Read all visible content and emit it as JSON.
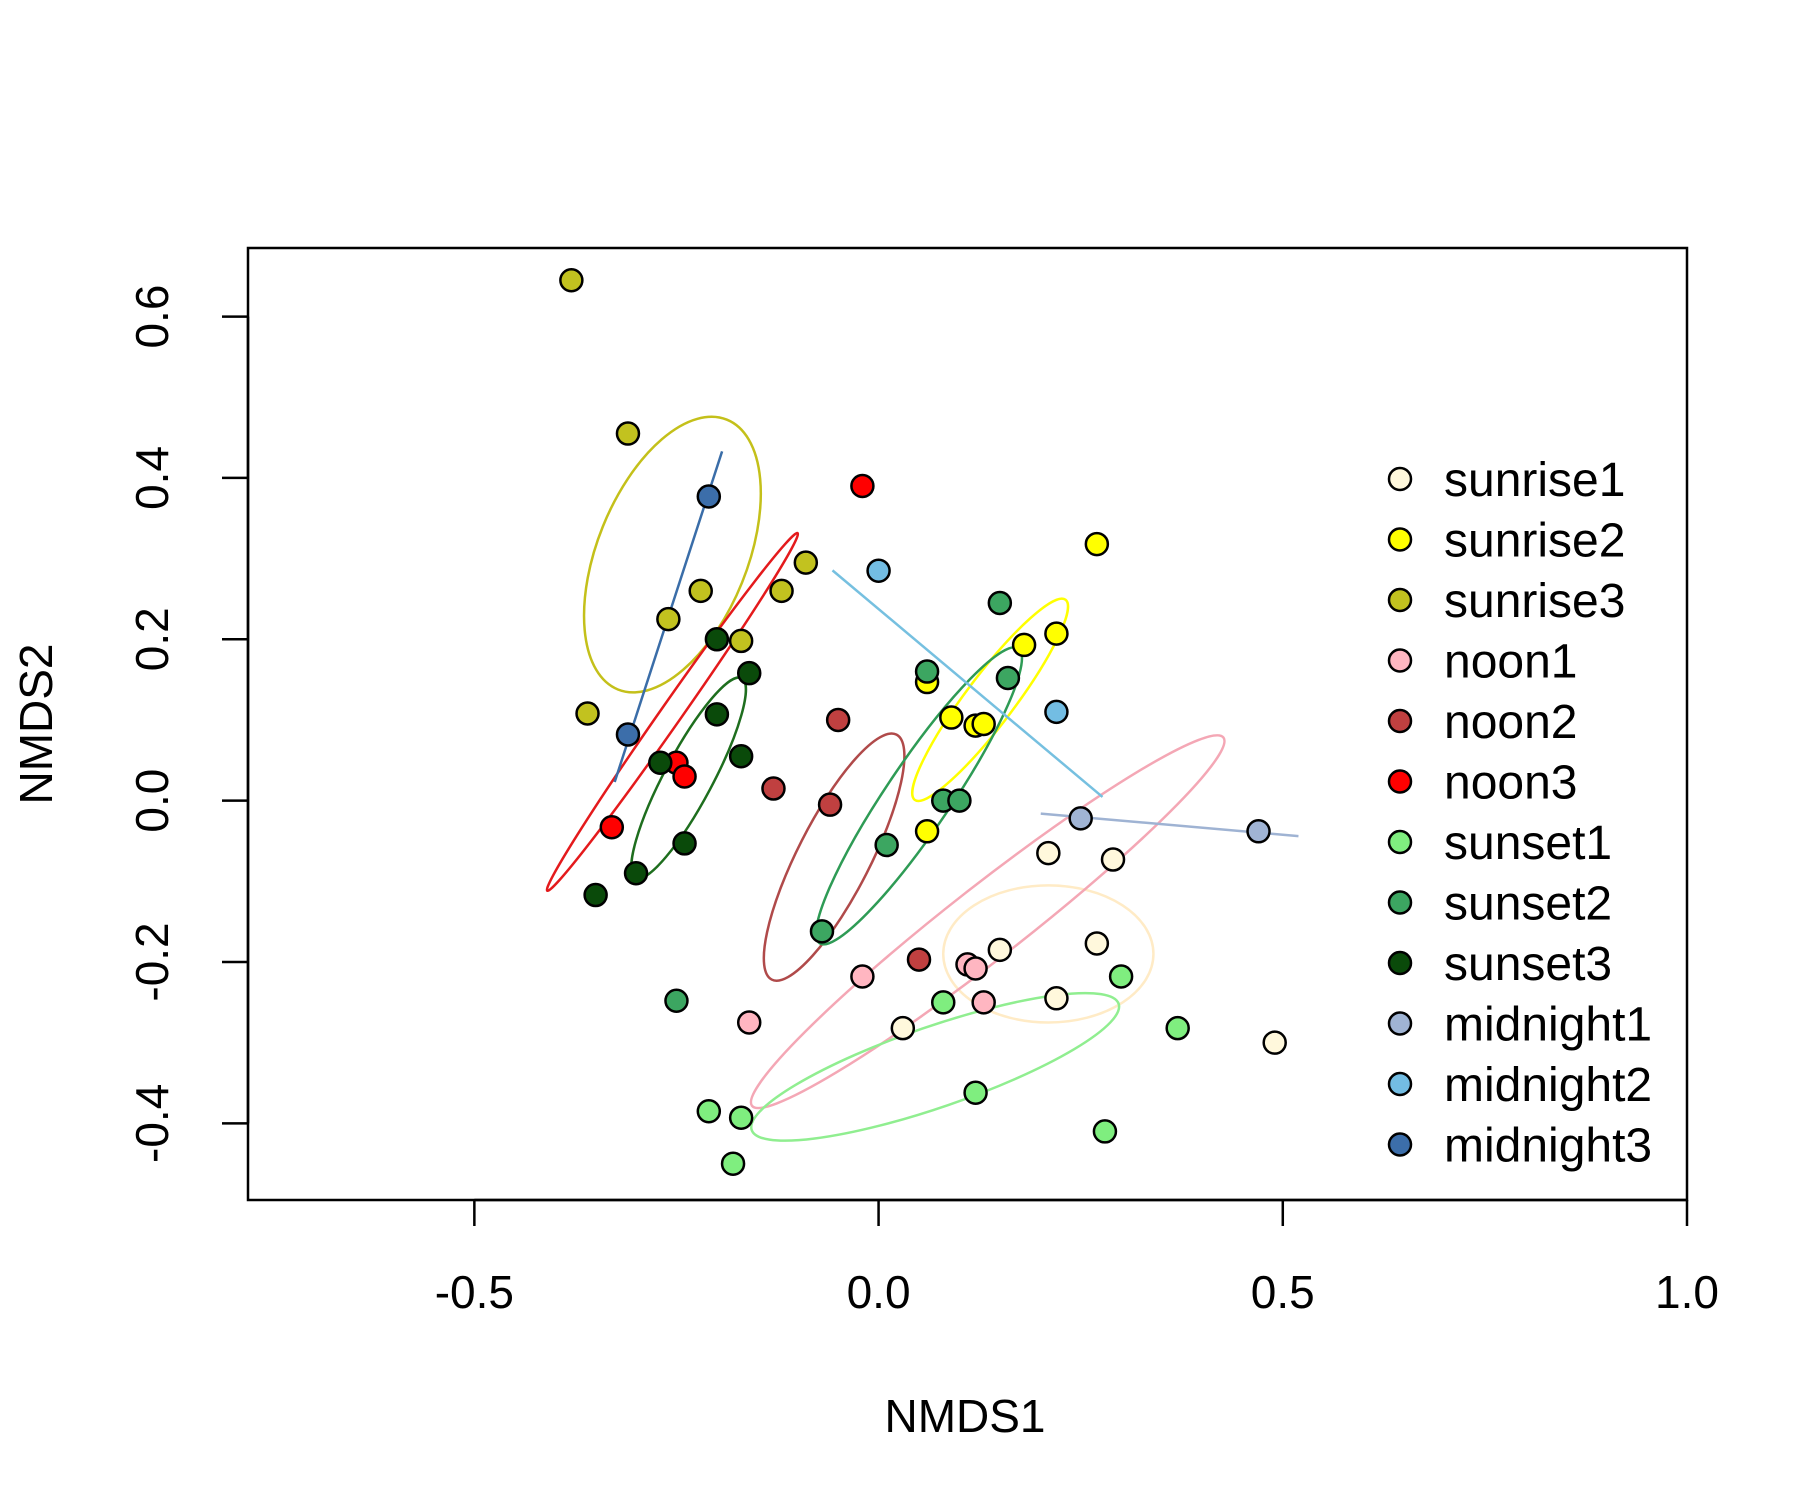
{
  "chart_data": {
    "type": "scatter",
    "title": "",
    "xlabel": "NMDS1",
    "ylabel": "NMDS2",
    "xlim": [
      -0.78,
      1.0
    ],
    "ylim": [
      -0.495,
      0.685
    ],
    "xticks": [
      {
        "value": -0.5,
        "label": "-0.5"
      },
      {
        "value": 0.0,
        "label": "0.0"
      },
      {
        "value": 0.5,
        "label": "0.5"
      },
      {
        "value": 1.0,
        "label": "1.0"
      }
    ],
    "yticks": [
      {
        "value": -0.4,
        "label": "-0.4"
      },
      {
        "value": -0.2,
        "label": "-0.2"
      },
      {
        "value": 0.0,
        "label": "0.0"
      },
      {
        "value": 0.2,
        "label": "0.2"
      },
      {
        "value": 0.4,
        "label": "0.4"
      },
      {
        "value": 0.6,
        "label": "0.6"
      }
    ],
    "legend_position": "right",
    "grid": false,
    "series": [
      {
        "name": "sunrise1",
        "color": "#FFF8DC",
        "ellipse_color": "#FFEBC6",
        "points": [
          [
            0.21,
            -0.065
          ],
          [
            0.29,
            -0.073
          ],
          [
            0.27,
            -0.177
          ],
          [
            0.15,
            -0.185
          ],
          [
            0.22,
            -0.245
          ],
          [
            0.49,
            -0.3
          ],
          [
            0.03,
            -0.282
          ]
        ]
      },
      {
        "name": "sunrise2",
        "color": "#FFFF00",
        "ellipse_color": "#FFFF00",
        "points": [
          [
            0.27,
            0.318
          ],
          [
            0.22,
            0.207
          ],
          [
            0.18,
            0.193
          ],
          [
            0.06,
            0.147
          ],
          [
            0.09,
            0.103
          ],
          [
            0.12,
            0.093
          ],
          [
            0.13,
            0.095
          ],
          [
            0.06,
            -0.038
          ]
        ]
      },
      {
        "name": "sunrise3",
        "color": "#C2C21F",
        "ellipse_color": "#C4C01A",
        "points": [
          [
            -0.38,
            0.645
          ],
          [
            -0.31,
            0.455
          ],
          [
            -0.09,
            0.295
          ],
          [
            -0.22,
            0.26
          ],
          [
            -0.12,
            0.26
          ],
          [
            -0.26,
            0.225
          ],
          [
            -0.17,
            0.198
          ],
          [
            -0.36,
            0.108
          ]
        ]
      },
      {
        "name": "noon1",
        "color": "#FFB6C1",
        "ellipse_color": "#F4A7B5",
        "points": [
          [
            0.11,
            -0.203
          ],
          [
            0.12,
            -0.208
          ],
          [
            -0.02,
            -0.218
          ],
          [
            0.13,
            -0.25
          ],
          [
            -0.16,
            -0.275
          ]
        ]
      },
      {
        "name": "noon2",
        "color": "#C04040",
        "ellipse_color": "#B04A4A",
        "points": [
          [
            -0.05,
            0.1
          ],
          [
            -0.13,
            0.015
          ],
          [
            -0.06,
            -0.005
          ],
          [
            0.05,
            -0.197
          ]
        ]
      },
      {
        "name": "noon3",
        "color": "#FF0000",
        "ellipse_color": "#E41A1C",
        "points": [
          [
            -0.02,
            0.39
          ],
          [
            -0.25,
            0.047
          ],
          [
            -0.24,
            0.03
          ],
          [
            -0.33,
            -0.033
          ]
        ]
      },
      {
        "name": "sunset1",
        "color": "#7FEE7F",
        "ellipse_color": "#90EE90",
        "points": [
          [
            0.3,
            -0.218
          ],
          [
            0.08,
            -0.25
          ],
          [
            0.37,
            -0.282
          ],
          [
            0.12,
            -0.362
          ],
          [
            -0.21,
            -0.385
          ],
          [
            -0.17,
            -0.393
          ],
          [
            0.28,
            -0.41
          ],
          [
            -0.18,
            -0.45
          ]
        ]
      },
      {
        "name": "sunset2",
        "color": "#3CA661",
        "ellipse_color": "#2E9B55",
        "points": [
          [
            0.15,
            0.245
          ],
          [
            0.06,
            0.16
          ],
          [
            0.16,
            0.152
          ],
          [
            0.08,
            0.0
          ],
          [
            0.1,
            0.0
          ],
          [
            0.01,
            -0.055
          ],
          [
            -0.07,
            -0.162
          ],
          [
            -0.25,
            -0.248
          ]
        ]
      },
      {
        "name": "sunset3",
        "color": "#0A4A0A",
        "ellipse_color": "#1E6E1E",
        "points": [
          [
            -0.2,
            0.2
          ],
          [
            -0.16,
            0.158
          ],
          [
            -0.2,
            0.107
          ],
          [
            -0.17,
            0.055
          ],
          [
            -0.27,
            0.047
          ],
          [
            -0.24,
            -0.053
          ],
          [
            -0.3,
            -0.09
          ],
          [
            -0.35,
            -0.117
          ]
        ]
      },
      {
        "name": "midnight1",
        "color": "#A0B4D4",
        "ellipse_color": "#9FB3D3",
        "points": [
          [
            0.25,
            -0.022
          ],
          [
            0.47,
            -0.038
          ]
        ]
      },
      {
        "name": "midnight2",
        "color": "#73BDE3",
        "ellipse_color": "#76C0E0",
        "points": [
          [
            0.0,
            0.285
          ],
          [
            0.22,
            0.11
          ]
        ]
      },
      {
        "name": "midnight3",
        "color": "#3C6EAA",
        "ellipse_color": "#3A6DA8",
        "points": [
          [
            -0.21,
            0.377
          ],
          [
            -0.31,
            0.082
          ]
        ]
      }
    ],
    "ellipses": [
      {
        "series": "sunrise1",
        "cx": 0.21,
        "cy": -0.19,
        "rx": 0.13,
        "ry": 0.085,
        "angle": 0
      },
      {
        "series": "sunrise2",
        "cx": 0.138,
        "cy": 0.125,
        "rx": 0.155,
        "ry": 0.03,
        "angle": 53
      },
      {
        "series": "sunrise3",
        "cx": -0.255,
        "cy": 0.305,
        "rx": 0.18,
        "ry": 0.093,
        "angle": 68
      },
      {
        "series": "noon1",
        "cx": 0.135,
        "cy": -0.15,
        "rx": 0.37,
        "ry": 0.045,
        "angle": 38
      },
      {
        "series": "noon2",
        "cx": -0.055,
        "cy": -0.07,
        "rx": 0.17,
        "ry": 0.045,
        "angle": 63
      },
      {
        "series": "noon3",
        "cx": -0.255,
        "cy": 0.11,
        "rx": 0.27,
        "ry": 0.013,
        "angle": 55
      },
      {
        "series": "sunset1",
        "cx": 0.07,
        "cy": -0.33,
        "rx": 0.24,
        "ry": 0.05,
        "angle": 19
      },
      {
        "series": "sunset2",
        "cx": 0.05,
        "cy": 0.006,
        "rx": 0.22,
        "ry": 0.04,
        "angle": 56
      },
      {
        "series": "sunset3",
        "cx": -0.235,
        "cy": 0.028,
        "rx": 0.14,
        "ry": 0.03,
        "angle": 62
      },
      {
        "series": "midnight1",
        "cx": 0.36,
        "cy": -0.03,
        "rx": 0.16,
        "ry": 0.0,
        "angle": -5
      },
      {
        "series": "midnight2",
        "cx": 0.11,
        "cy": 0.145,
        "rx": 0.218,
        "ry": 0.0,
        "angle": -40
      },
      {
        "series": "midnight3",
        "cx": -0.26,
        "cy": 0.228,
        "rx": 0.215,
        "ry": 0.0,
        "angle": 72
      }
    ]
  }
}
